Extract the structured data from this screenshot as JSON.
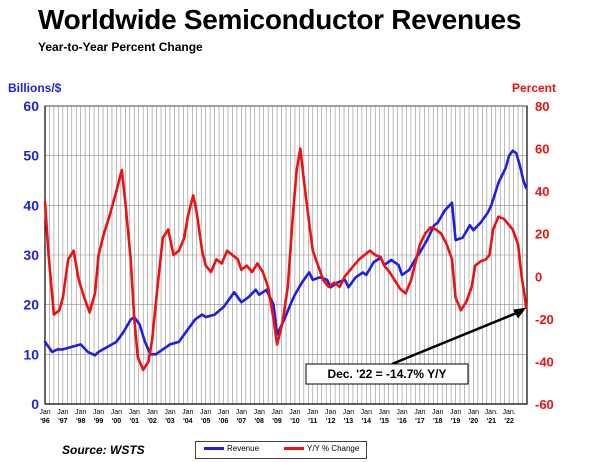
{
  "header": {
    "title": "Worldwide Semiconductor Revenues",
    "subtitle": "Year-to-Year Percent Change"
  },
  "source": "Source: WSTS",
  "legend": {
    "revenue_label": "Revenue",
    "yoy_label": "Y/Y % Change"
  },
  "colors": {
    "revenue": "#1f1fe0",
    "yoy": "#ee1111",
    "left_axis": "#1f1fe0",
    "right_axis": "#ee1111",
    "grid": "#8c8c8c"
  },
  "chart_data": {
    "type": "line",
    "title": "Worldwide Semiconductor Revenues",
    "subtitle": "Year-to-Year Percent Change",
    "ylabel_left": "Billions/$",
    "ylabel_right": "Percent",
    "ylim_left": [
      0,
      60
    ],
    "ylim_right": [
      -60,
      80
    ],
    "yticks_left": [
      0,
      10,
      20,
      30,
      40,
      50,
      60
    ],
    "yticks_right": [
      -60,
      -40,
      -20,
      0,
      20,
      40,
      60,
      80
    ],
    "xlim": [
      1996.0,
      2023.0
    ],
    "grid": true,
    "x_tick_labels": [
      {
        "year": 1996,
        "top": "Jan",
        "bottom": "'96"
      },
      {
        "year": 1997,
        "top": "Jan",
        "bottom": "'97"
      },
      {
        "year": 1998,
        "top": "Jan",
        "bottom": "'98"
      },
      {
        "year": 1999,
        "top": "Jan",
        "bottom": "'99"
      },
      {
        "year": 2000,
        "top": "Jan",
        "bottom": "'00"
      },
      {
        "year": 2001,
        "top": "Jan",
        "bottom": "'01"
      },
      {
        "year": 2002,
        "top": "Jan",
        "bottom": "'02"
      },
      {
        "year": 2003,
        "top": "Jan",
        "bottom": "'03"
      },
      {
        "year": 2004,
        "top": "Jan",
        "bottom": "'04"
      },
      {
        "year": 2005,
        "top": "Jan",
        "bottom": "'05"
      },
      {
        "year": 2006,
        "top": "Jan",
        "bottom": "'06"
      },
      {
        "year": 2007,
        "top": "Jan",
        "bottom": "'07"
      },
      {
        "year": 2008,
        "top": "Jan",
        "bottom": "'08"
      },
      {
        "year": 2009,
        "top": "Jan",
        "bottom": "'09"
      },
      {
        "year": 2010,
        "top": "Jan",
        "bottom": "'10"
      },
      {
        "year": 2011,
        "top": "Jan",
        "bottom": "'11"
      },
      {
        "year": 2012,
        "top": "Jan",
        "bottom": "'12"
      },
      {
        "year": 2013,
        "top": "Jan",
        "bottom": "'13"
      },
      {
        "year": 2014,
        "top": "Jan",
        "bottom": "'14"
      },
      {
        "year": 2015,
        "top": "Jan",
        "bottom": "'15"
      },
      {
        "year": 2016,
        "top": "Jan",
        "bottom": "'16"
      },
      {
        "year": 2017,
        "top": "Jan",
        "bottom": "'17"
      },
      {
        "year": 2018,
        "top": "Jan",
        "bottom": "'18"
      },
      {
        "year": 2019,
        "top": "Jan",
        "bottom": "'19"
      },
      {
        "year": 2020,
        "top": "Jan",
        "bottom": "'20"
      },
      {
        "year": 2021,
        "top": "Jan.",
        "bottom": "'21"
      },
      {
        "year": 2022,
        "top": "Jan.",
        "bottom": "'22"
      }
    ],
    "series": [
      {
        "name": "Revenue",
        "axis": "left",
        "color": "#1f1fe0",
        "points": [
          [
            1996.0,
            12.5
          ],
          [
            1996.4,
            10.5
          ],
          [
            1996.7,
            11.0
          ],
          [
            1997.0,
            11.0
          ],
          [
            1997.5,
            11.5
          ],
          [
            1998.0,
            12.0
          ],
          [
            1998.4,
            10.5
          ],
          [
            1998.8,
            9.8
          ],
          [
            1999.0,
            10.5
          ],
          [
            1999.5,
            11.5
          ],
          [
            2000.0,
            12.5
          ],
          [
            2000.4,
            14.5
          ],
          [
            2000.8,
            17.0
          ],
          [
            2001.0,
            17.5
          ],
          [
            2001.3,
            16.0
          ],
          [
            2001.6,
            12.5
          ],
          [
            2001.9,
            10.0
          ],
          [
            2002.2,
            10.0
          ],
          [
            2002.6,
            11.0
          ],
          [
            2003.0,
            12.0
          ],
          [
            2003.5,
            12.5
          ],
          [
            2004.0,
            15.0
          ],
          [
            2004.4,
            17.0
          ],
          [
            2004.8,
            18.0
          ],
          [
            2005.0,
            17.5
          ],
          [
            2005.5,
            18.0
          ],
          [
            2006.0,
            19.5
          ],
          [
            2006.3,
            21.0
          ],
          [
            2006.6,
            22.5
          ],
          [
            2007.0,
            20.5
          ],
          [
            2007.4,
            21.5
          ],
          [
            2007.8,
            23.0
          ],
          [
            2008.0,
            22.0
          ],
          [
            2008.4,
            23.0
          ],
          [
            2008.8,
            20.0
          ],
          [
            2009.0,
            14.0
          ],
          [
            2009.4,
            17.0
          ],
          [
            2009.8,
            20.5
          ],
          [
            2010.0,
            22.0
          ],
          [
            2010.4,
            24.5
          ],
          [
            2010.8,
            26.5
          ],
          [
            2011.0,
            25.0
          ],
          [
            2011.4,
            25.5
          ],
          [
            2011.8,
            25.0
          ],
          [
            2012.0,
            23.5
          ],
          [
            2012.4,
            24.5
          ],
          [
            2012.8,
            25.0
          ],
          [
            2013.0,
            23.5
          ],
          [
            2013.4,
            25.5
          ],
          [
            2013.8,
            26.5
          ],
          [
            2014.0,
            26.0
          ],
          [
            2014.4,
            28.5
          ],
          [
            2014.8,
            29.5
          ],
          [
            2015.0,
            28.0
          ],
          [
            2015.4,
            29.0
          ],
          [
            2015.8,
            28.0
          ],
          [
            2016.0,
            26.0
          ],
          [
            2016.4,
            27.0
          ],
          [
            2016.8,
            29.5
          ],
          [
            2017.0,
            30.5
          ],
          [
            2017.4,
            33.0
          ],
          [
            2017.8,
            36.0
          ],
          [
            2018.0,
            36.5
          ],
          [
            2018.4,
            39.0
          ],
          [
            2018.8,
            40.5
          ],
          [
            2019.0,
            33.0
          ],
          [
            2019.4,
            33.5
          ],
          [
            2019.8,
            36.0
          ],
          [
            2020.0,
            35.0
          ],
          [
            2020.4,
            36.5
          ],
          [
            2020.8,
            38.5
          ],
          [
            2021.0,
            40.0
          ],
          [
            2021.4,
            44.5
          ],
          [
            2021.8,
            47.5
          ],
          [
            2022.0,
            50.0
          ],
          [
            2022.2,
            51.0
          ],
          [
            2022.4,
            50.5
          ],
          [
            2022.6,
            48.0
          ],
          [
            2022.8,
            45.0
          ],
          [
            2022.95,
            43.5
          ]
        ]
      },
      {
        "name": "Y/Y % Change",
        "axis": "right",
        "color": "#ee1111",
        "points": [
          [
            1996.0,
            35.0
          ],
          [
            1996.2,
            10.0
          ],
          [
            1996.5,
            -18.0
          ],
          [
            1996.8,
            -16.0
          ],
          [
            1997.0,
            -10.0
          ],
          [
            1997.3,
            8.0
          ],
          [
            1997.6,
            12.0
          ],
          [
            1997.9,
            -2.0
          ],
          [
            1998.2,
            -10.0
          ],
          [
            1998.5,
            -17.0
          ],
          [
            1998.8,
            -8.0
          ],
          [
            1999.0,
            10.0
          ],
          [
            1999.3,
            20.0
          ],
          [
            1999.6,
            28.0
          ],
          [
            2000.0,
            40.0
          ],
          [
            2000.3,
            50.0
          ],
          [
            2000.5,
            35.0
          ],
          [
            2000.8,
            8.0
          ],
          [
            2001.0,
            -20.0
          ],
          [
            2001.2,
            -38.0
          ],
          [
            2001.5,
            -44.0
          ],
          [
            2001.8,
            -40.0
          ],
          [
            2002.0,
            -30.0
          ],
          [
            2002.3,
            -5.0
          ],
          [
            2002.6,
            18.0
          ],
          [
            2002.9,
            22.0
          ],
          [
            2003.2,
            10.0
          ],
          [
            2003.5,
            12.0
          ],
          [
            2003.8,
            18.0
          ],
          [
            2004.0,
            28.0
          ],
          [
            2004.3,
            38.0
          ],
          [
            2004.5,
            30.0
          ],
          [
            2004.8,
            12.0
          ],
          [
            2005.0,
            5.0
          ],
          [
            2005.3,
            2.0
          ],
          [
            2005.6,
            8.0
          ],
          [
            2005.9,
            6.0
          ],
          [
            2006.2,
            12.0
          ],
          [
            2006.5,
            10.0
          ],
          [
            2006.8,
            8.0
          ],
          [
            2007.0,
            3.0
          ],
          [
            2007.3,
            5.0
          ],
          [
            2007.6,
            2.0
          ],
          [
            2007.9,
            6.0
          ],
          [
            2008.2,
            2.0
          ],
          [
            2008.5,
            -5.0
          ],
          [
            2008.8,
            -20.0
          ],
          [
            2009.0,
            -32.0
          ],
          [
            2009.3,
            -22.0
          ],
          [
            2009.6,
            -5.0
          ],
          [
            2009.9,
            30.0
          ],
          [
            2010.1,
            50.0
          ],
          [
            2010.3,
            60.0
          ],
          [
            2010.5,
            45.0
          ],
          [
            2010.8,
            25.0
          ],
          [
            2011.0,
            12.0
          ],
          [
            2011.3,
            5.0
          ],
          [
            2011.6,
            -2.0
          ],
          [
            2011.9,
            -5.0
          ],
          [
            2012.2,
            -3.0
          ],
          [
            2012.5,
            -5.0
          ],
          [
            2012.8,
            0.0
          ],
          [
            2013.0,
            2.0
          ],
          [
            2013.3,
            5.0
          ],
          [
            2013.6,
            8.0
          ],
          [
            2013.9,
            10.0
          ],
          [
            2014.2,
            12.0
          ],
          [
            2014.5,
            10.0
          ],
          [
            2014.8,
            9.0
          ],
          [
            2015.0,
            5.0
          ],
          [
            2015.3,
            2.0
          ],
          [
            2015.6,
            -2.0
          ],
          [
            2015.9,
            -6.0
          ],
          [
            2016.2,
            -8.0
          ],
          [
            2016.5,
            -2.0
          ],
          [
            2016.8,
            8.0
          ],
          [
            2017.0,
            15.0
          ],
          [
            2017.3,
            20.0
          ],
          [
            2017.6,
            23.0
          ],
          [
            2017.9,
            22.0
          ],
          [
            2018.2,
            20.0
          ],
          [
            2018.5,
            15.0
          ],
          [
            2018.8,
            8.0
          ],
          [
            2019.0,
            -10.0
          ],
          [
            2019.3,
            -16.0
          ],
          [
            2019.6,
            -12.0
          ],
          [
            2019.9,
            -5.0
          ],
          [
            2020.1,
            5.0
          ],
          [
            2020.4,
            7.0
          ],
          [
            2020.7,
            8.0
          ],
          [
            2020.9,
            10.0
          ],
          [
            2021.1,
            22.0
          ],
          [
            2021.4,
            28.0
          ],
          [
            2021.7,
            27.0
          ],
          [
            2021.9,
            25.0
          ],
          [
            2022.2,
            22.0
          ],
          [
            2022.5,
            15.0
          ],
          [
            2022.7,
            0.0
          ],
          [
            2022.85,
            -8.0
          ],
          [
            2022.95,
            -14.7
          ]
        ]
      }
    ],
    "annotations": [
      {
        "text": "Dec. '22 = -14.7% Y/Y",
        "points_to": {
          "x": 2022.95,
          "y": -14.7,
          "axis": "right"
        }
      }
    ]
  }
}
